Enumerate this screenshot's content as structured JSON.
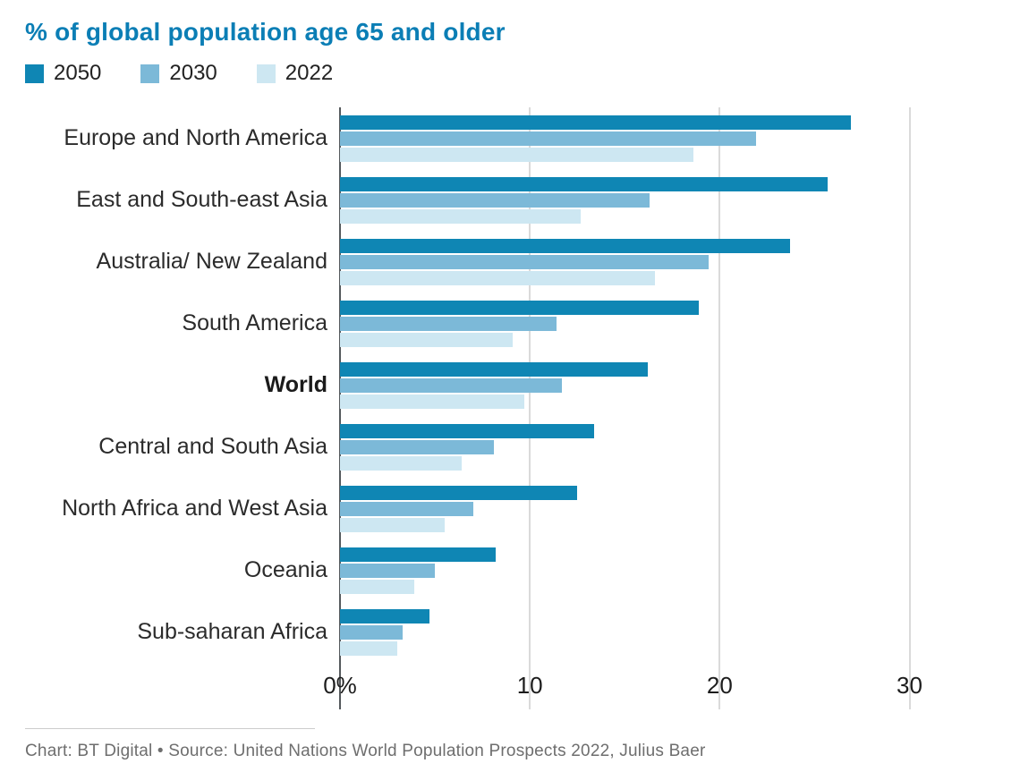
{
  "colors": {
    "title": "#0b7eb5",
    "gridline": "#dadada",
    "zero_line": "#55595c",
    "label_text": "#2b2b2b",
    "footer_text": "#6e6e6e"
  },
  "footer": {
    "text": "Chart: BT Digital • Source: United Nations World Population Prospects 2022, Julius Baer"
  },
  "chart_data": {
    "type": "bar",
    "orientation": "horizontal",
    "title": "% of global population age 65 and older",
    "categories": [
      "Europe and North America",
      "East and South-east Asia",
      "Australia/ New Zealand",
      "South America",
      "World",
      "Central and South Asia",
      "North Africa and West Asia",
      "Oceania",
      "Sub-saharan Africa"
    ],
    "bold_category": "World",
    "series": [
      {
        "name": "2050",
        "color": "#0f86b4",
        "values": [
          26.9,
          25.7,
          23.7,
          18.9,
          16.2,
          13.4,
          12.5,
          8.2,
          4.7
        ]
      },
      {
        "name": "2030",
        "color": "#7cb9d8",
        "values": [
          21.9,
          16.3,
          19.4,
          11.4,
          11.7,
          8.1,
          7.0,
          5.0,
          3.3
        ]
      },
      {
        "name": "2022",
        "color": "#cde7f2",
        "values": [
          18.6,
          12.7,
          16.6,
          9.1,
          9.7,
          6.4,
          5.5,
          3.9,
          3.0
        ]
      }
    ],
    "x_ticks": [
      "0%",
      "10",
      "20",
      "30"
    ],
    "x_tick_values": [
      0,
      10,
      20,
      30
    ],
    "xlim": [
      0,
      34.5
    ],
    "grid": true,
    "legend_position": "top"
  }
}
